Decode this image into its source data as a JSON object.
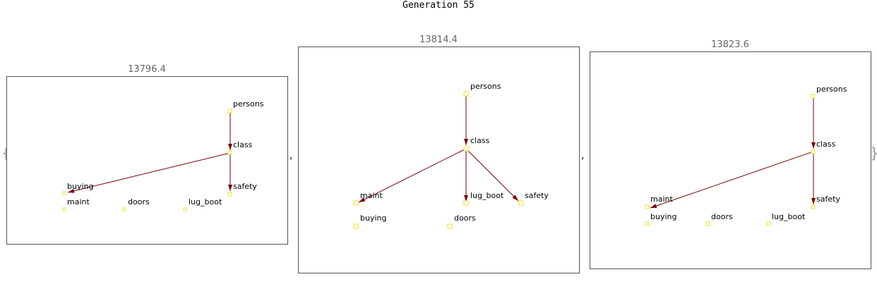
{
  "title": "Generation 55",
  "brace_open": "{",
  "brace_close": "}",
  "separator": ",",
  "edge_color": "#7a0000",
  "node_color": "#f2e34b",
  "graphs": [
    {
      "score": "13796.4",
      "nodes": [
        "persons",
        "class",
        "buying",
        "safety",
        "maint",
        "doors",
        "lug_boot"
      ],
      "edges": [
        [
          "persons",
          "class"
        ],
        [
          "class",
          "buying"
        ],
        [
          "class",
          "safety"
        ]
      ]
    },
    {
      "score": "13814.4",
      "nodes": [
        "persons",
        "class",
        "maint",
        "lug_boot",
        "safety",
        "buying",
        "doors"
      ],
      "edges": [
        [
          "persons",
          "class"
        ],
        [
          "class",
          "maint"
        ],
        [
          "class",
          "lug_boot"
        ],
        [
          "class",
          "safety"
        ]
      ]
    },
    {
      "score": "13823.6",
      "nodes": [
        "persons",
        "class",
        "maint",
        "safety",
        "buying",
        "doors",
        "lug_boot"
      ],
      "edges": [
        [
          "persons",
          "class"
        ],
        [
          "class",
          "maint"
        ],
        [
          "class",
          "safety"
        ]
      ]
    }
  ]
}
